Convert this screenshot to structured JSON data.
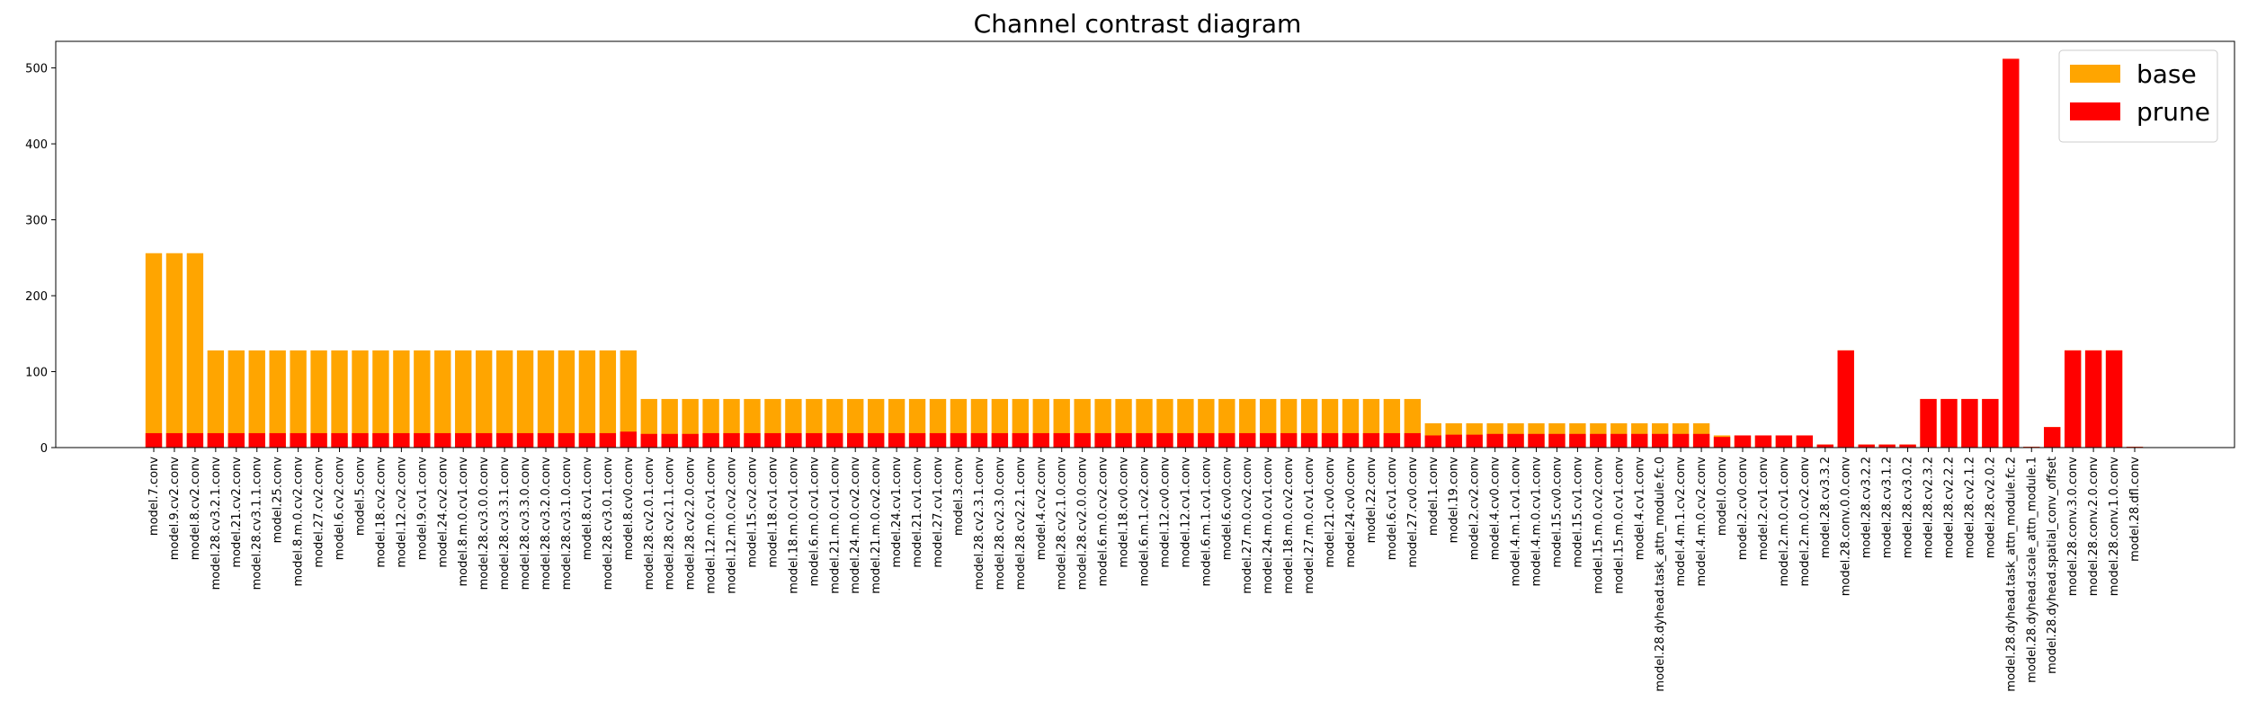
{
  "colors": {
    "base": "#FFA500",
    "prune": "#FF0000",
    "axis": "#000000",
    "background": "#FFFFFF"
  },
  "chart_data": {
    "type": "bar",
    "title": "Channel contrast diagram",
    "xlabel": "",
    "ylabel": "",
    "ylim": [
      0,
      535
    ],
    "yticks": [
      0,
      100,
      200,
      300,
      400,
      500
    ],
    "grid": false,
    "legend": {
      "position": "top-right",
      "entries": [
        "base",
        "prune"
      ]
    },
    "categories": [
      "model.7.conv",
      "model.9.cv2.conv",
      "model.8.cv2.conv",
      "model.28.cv3.2.1.conv",
      "model.21.cv2.conv",
      "model.28.cv3.1.1.conv",
      "model.25.conv",
      "model.8.m.0.cv2.conv",
      "model.27.cv2.conv",
      "model.6.cv2.conv",
      "model.5.conv",
      "model.18.cv2.conv",
      "model.12.cv2.conv",
      "model.9.cv1.conv",
      "model.24.cv2.conv",
      "model.8.m.0.cv1.conv",
      "model.28.cv3.0.0.conv",
      "model.28.cv3.3.1.conv",
      "model.28.cv3.3.0.conv",
      "model.28.cv3.2.0.conv",
      "model.28.cv3.1.0.conv",
      "model.8.cv1.conv",
      "model.28.cv3.0.1.conv",
      "model.8.cv0.conv",
      "model.28.cv2.0.1.conv",
      "model.28.cv2.1.1.conv",
      "model.28.cv2.2.0.conv",
      "model.12.m.0.cv1.conv",
      "model.12.m.0.cv2.conv",
      "model.15.cv2.conv",
      "model.18.cv1.conv",
      "model.18.m.0.cv1.conv",
      "model.6.m.0.cv1.conv",
      "model.21.m.0.cv1.conv",
      "model.24.m.0.cv2.conv",
      "model.21.m.0.cv2.conv",
      "model.24.cv1.conv",
      "model.21.cv1.conv",
      "model.27.cv1.conv",
      "model.3.conv",
      "model.28.cv2.3.1.conv",
      "model.28.cv2.3.0.conv",
      "model.28.cv2.2.1.conv",
      "model.4.cv2.conv",
      "model.28.cv2.1.0.conv",
      "model.28.cv2.0.0.conv",
      "model.6.m.0.cv2.conv",
      "model.18.cv0.conv",
      "model.6.m.1.cv2.conv",
      "model.12.cv0.conv",
      "model.12.cv1.conv",
      "model.6.m.1.cv1.conv",
      "model.6.cv0.conv",
      "model.27.m.0.cv2.conv",
      "model.24.m.0.cv1.conv",
      "model.18.m.0.cv2.conv",
      "model.27.m.0.cv1.conv",
      "model.21.cv0.conv",
      "model.24.cv0.conv",
      "model.22.conv",
      "model.6.cv1.conv",
      "model.27.cv0.conv",
      "model.1.conv",
      "model.19.conv",
      "model.2.cv2.conv",
      "model.4.cv0.conv",
      "model.4.m.1.cv1.conv",
      "model.4.m.0.cv1.conv",
      "model.15.cv0.conv",
      "model.15.cv1.conv",
      "model.15.m.0.cv2.conv",
      "model.15.m.0.cv1.conv",
      "model.4.cv1.conv",
      "model.28.dyhead.task_attn_module.fc.0",
      "model.4.m.1.cv2.conv",
      "model.4.m.0.cv2.conv",
      "model.0.conv",
      "model.2.cv0.conv",
      "model.2.cv1.conv",
      "model.2.m.0.cv1.conv",
      "model.2.m.0.cv2.conv",
      "model.28.cv3.3.2",
      "model.28.conv.0.0.conv",
      "model.28.cv3.2.2",
      "model.28.cv3.1.2",
      "model.28.cv3.0.2",
      "model.28.cv2.3.2",
      "model.28.cv2.2.2",
      "model.28.cv2.1.2",
      "model.28.cv2.0.2",
      "model.28.dyhead.task_attn_module.fc.2",
      "model.28.dyhead.scale_attn_module.1",
      "model.28.dyhead.spatial_conv_offset",
      "model.28.conv.3.0.conv",
      "model.28.conv.2.0.conv",
      "model.28.conv.1.0.conv",
      "model.28.dfl.conv"
    ],
    "series": [
      {
        "name": "base",
        "values": [
          256,
          256,
          256,
          128,
          128,
          128,
          128,
          128,
          128,
          128,
          128,
          128,
          128,
          128,
          128,
          128,
          128,
          128,
          128,
          128,
          128,
          128,
          128,
          128,
          64,
          64,
          64,
          64,
          64,
          64,
          64,
          64,
          64,
          64,
          64,
          64,
          64,
          64,
          64,
          64,
          64,
          64,
          64,
          64,
          64,
          64,
          64,
          64,
          64,
          64,
          64,
          64,
          64,
          64,
          64,
          64,
          64,
          64,
          64,
          64,
          64,
          64,
          32,
          32,
          32,
          32,
          32,
          32,
          32,
          32,
          32,
          32,
          32,
          32,
          32,
          32,
          16,
          16,
          16,
          16,
          16,
          4,
          128,
          4,
          4,
          4,
          64,
          64,
          64,
          64,
          512,
          1,
          27,
          128,
          128,
          128,
          1
        ]
      },
      {
        "name": "prune",
        "values": [
          19,
          19,
          19,
          19,
          19,
          19,
          19,
          19,
          19,
          19,
          19,
          19,
          19,
          19,
          19,
          19,
          19,
          19,
          19,
          19,
          19,
          19,
          19,
          21,
          18,
          18,
          18,
          19,
          19,
          19,
          19,
          19,
          19,
          19,
          19,
          19,
          19,
          19,
          19,
          19,
          19,
          19,
          19,
          19,
          19,
          19,
          19,
          19,
          19,
          19,
          19,
          19,
          19,
          19,
          19,
          19,
          19,
          19,
          19,
          19,
          19,
          19,
          16,
          17,
          17,
          18,
          18,
          18,
          18,
          18,
          18,
          18,
          18,
          18,
          18,
          18,
          14,
          16,
          16,
          16,
          16,
          4,
          128,
          4,
          4,
          4,
          64,
          64,
          64,
          64,
          512,
          1,
          27,
          128,
          128,
          128,
          1
        ]
      }
    ]
  }
}
